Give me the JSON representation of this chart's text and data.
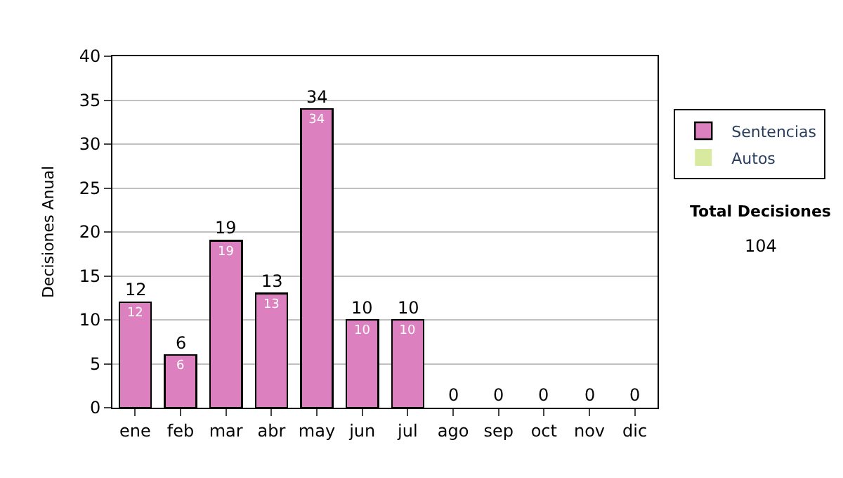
{
  "chart_data": {
    "type": "bar",
    "stacked": true,
    "ylabel": "Decisiones Anual",
    "categories": [
      "ene",
      "feb",
      "mar",
      "abr",
      "may",
      "jun",
      "jul",
      "ago",
      "sep",
      "oct",
      "nov",
      "dic"
    ],
    "series": [
      {
        "name": "Sentencias",
        "color": "#dd80c0",
        "values": [
          12,
          6,
          19,
          13,
          34,
          10,
          10,
          0,
          0,
          0,
          0,
          0
        ],
        "value_labels": [
          "12",
          "6",
          "19",
          "13",
          "34",
          "10",
          "10",
          null,
          null,
          null,
          null,
          null
        ]
      },
      {
        "name": "Autos",
        "color": "#d8eaa0",
        "values": [
          0,
          0,
          0,
          0,
          0,
          0,
          0,
          0,
          0,
          0,
          0,
          0
        ]
      }
    ],
    "totals": [
      "12",
      "6",
      "19",
      "13",
      "34",
      "10",
      "10",
      "0",
      "0",
      "0",
      "0",
      "0"
    ],
    "ylim": [
      0,
      40
    ],
    "yticks": [
      0,
      5,
      10,
      15,
      20,
      25,
      30,
      35,
      40
    ],
    "grid": "y",
    "legend": "right",
    "annotations": [
      "Total Decisiones",
      "104"
    ]
  }
}
